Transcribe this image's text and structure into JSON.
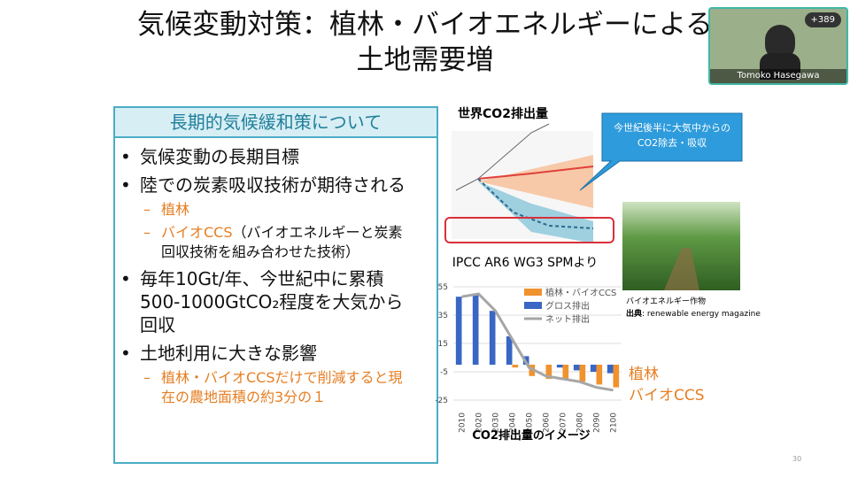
{
  "slide": {
    "title": "気候変動対策：植林・バイオエネルギーによる",
    "title_line2": "土地需要増",
    "page": "30",
    "box": {
      "header": "長期的気候緩和策について",
      "items": [
        {
          "level": 1,
          "text": "気候変動の長期目標"
        },
        {
          "level": 1,
          "text": "陸での炭素吸収技術が期待される"
        },
        {
          "level": 2,
          "text": "植林"
        },
        {
          "level": 2,
          "text": "バイオCCS",
          "note": "（バイオエネルギーと炭素回収技術を組み合わせた技術）"
        },
        {
          "level": 1,
          "text": "毎年10Gt/年、今世紀中に累積500-1000GtCO₂程度を大気から回収"
        },
        {
          "level": 1,
          "text": "土地利用に大きな影響"
        },
        {
          "level": 2,
          "text": "植林・バイオCCSだけで削減すると現在の農地面積の約3分の１"
        }
      ]
    },
    "ipcc": {
      "title": "世界CO2排出量",
      "caption": "IPCC AR6 WG3 SPMより",
      "callout": "今世紀後半に大気中からのCO2除去・吸収"
    },
    "photo": {
      "caption": "バイオエネルギー作物",
      "source_label": "出典",
      "source": ": renewable energy magazine"
    },
    "side_labels": [
      "植林",
      "バイオCCS"
    ]
  },
  "chart_data": {
    "type": "bar",
    "caption": "CO2排出量のイメージ",
    "categories": [
      "2010",
      "2020",
      "2030",
      "2040",
      "2050",
      "2060",
      "2070",
      "2080",
      "2090",
      "2100"
    ],
    "series": [
      {
        "name": "植林・バイオCCS",
        "color": "#f0922e",
        "values": [
          0,
          0,
          0,
          -2,
          -8,
          -10,
          -10,
          -12,
          -14,
          -16
        ]
      },
      {
        "name": "グロス排出",
        "color": "#3a66c4",
        "values": [
          48,
          50,
          38,
          20,
          6,
          0,
          -2,
          -4,
          -5,
          -6
        ]
      },
      {
        "name": "ネット排出",
        "color": "#a6a6a6",
        "type": "line",
        "values": [
          48,
          50,
          38,
          18,
          -2,
          -8,
          -10,
          -12,
          -16,
          -18
        ]
      }
    ],
    "ylim": [
      -30,
      60
    ],
    "yticks": [
      55,
      35,
      15,
      -5,
      -25
    ]
  },
  "video": {
    "name": "Tomoko Hasegawa",
    "count": "+389"
  }
}
